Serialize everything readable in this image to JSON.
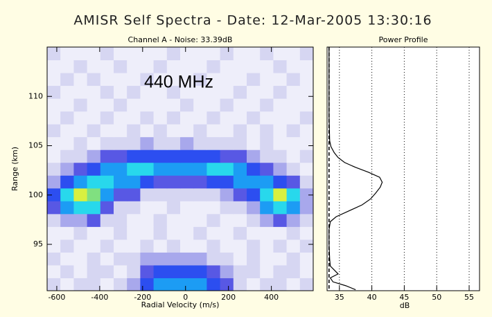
{
  "title": "AMISR Self Spectra - Date: 12-Mar-2005 13:30:16",
  "chart_data": [
    {
      "type": "heatmap",
      "title": "Channel A - Noise: 33.39dB",
      "annotation": "440 MHz",
      "xlabel": "Radial Velocity (m/s)",
      "ylabel": "Range (km)",
      "xlim": [
        -645,
        595
      ],
      "ylim": [
        90.3,
        115
      ],
      "xticks": [
        -600,
        -400,
        -200,
        0,
        200,
        400
      ],
      "yticks": [
        95,
        100,
        105,
        110
      ],
      "xbins": [
        -645,
        -583,
        -521,
        -459,
        -397,
        -335,
        -273,
        -211,
        -149,
        -87,
        -25,
        37,
        99,
        161,
        223,
        285,
        347,
        409,
        471,
        533,
        595
      ],
      "ybins": [
        90.3,
        91.6,
        92.9,
        94.2,
        95.5,
        96.8,
        98.1,
        99.4,
        100.7,
        102.0,
        103.3,
        104.6,
        105.9,
        107.2,
        108.5,
        109.8,
        111.1,
        112.4,
        113.7,
        115.0
      ],
      "zlim": [
        0,
        10
      ],
      "colorscale": [
        "#ffffff",
        "#eeeefa",
        "#d6d6f2",
        "#a8a8ec",
        "#5858e4",
        "#2c4ef0",
        "#1c9cf4",
        "#28d8ec",
        "#80e080",
        "#d8f040",
        "#f8f838"
      ],
      "z": [
        [
          2,
          1,
          2,
          2,
          1,
          2,
          3,
          5,
          6,
          6,
          6,
          6,
          5,
          4,
          2,
          1,
          2,
          2,
          1,
          2
        ],
        [
          1,
          2,
          1,
          2,
          2,
          1,
          2,
          4,
          5,
          5,
          5,
          5,
          4,
          3,
          2,
          2,
          1,
          2,
          2,
          1
        ],
        [
          2,
          1,
          1,
          2,
          1,
          2,
          2,
          3,
          3,
          3,
          3,
          3,
          2,
          2,
          1,
          2,
          1,
          1,
          2,
          1
        ],
        [
          1,
          2,
          1,
          1,
          2,
          1,
          1,
          2,
          1,
          2,
          1,
          1,
          2,
          1,
          1,
          2,
          1,
          2,
          1,
          2
        ],
        [
          1,
          1,
          2,
          1,
          1,
          2,
          1,
          1,
          2,
          1,
          1,
          2,
          1,
          1,
          2,
          1,
          1,
          1,
          2,
          1
        ],
        [
          2,
          3,
          3,
          4,
          2,
          2,
          1,
          1,
          2,
          1,
          1,
          1,
          2,
          1,
          1,
          2,
          3,
          4,
          3,
          2
        ],
        [
          4,
          6,
          7,
          7,
          4,
          2,
          2,
          1,
          1,
          2,
          1,
          1,
          1,
          2,
          2,
          3,
          6,
          7,
          6,
          3
        ],
        [
          5,
          7,
          9,
          8,
          6,
          4,
          4,
          2,
          2,
          2,
          2,
          2,
          2,
          3,
          4,
          5,
          7,
          9,
          7,
          3
        ],
        [
          3,
          5,
          6,
          7,
          7,
          6,
          6,
          5,
          4,
          4,
          4,
          4,
          5,
          5,
          6,
          6,
          6,
          5,
          4,
          2
        ],
        [
          2,
          3,
          4,
          5,
          6,
          6,
          7,
          7,
          6,
          6,
          6,
          6,
          7,
          7,
          6,
          5,
          4,
          3,
          2,
          1
        ],
        [
          1,
          2,
          2,
          3,
          4,
          4,
          5,
          5,
          5,
          5,
          5,
          5,
          5,
          4,
          4,
          3,
          2,
          2,
          1,
          2
        ],
        [
          1,
          1,
          2,
          1,
          2,
          2,
          2,
          3,
          2,
          2,
          3,
          2,
          2,
          2,
          2,
          1,
          2,
          1,
          1,
          1
        ],
        [
          2,
          1,
          1,
          2,
          1,
          1,
          2,
          1,
          2,
          1,
          1,
          2,
          1,
          1,
          2,
          1,
          2,
          1,
          2,
          1
        ],
        [
          1,
          2,
          1,
          1,
          2,
          1,
          1,
          2,
          1,
          2,
          1,
          1,
          2,
          1,
          1,
          2,
          1,
          1,
          1,
          2
        ],
        [
          1,
          1,
          2,
          1,
          1,
          2,
          1,
          1,
          1,
          1,
          2,
          1,
          1,
          2,
          1,
          1,
          2,
          1,
          1,
          1
        ],
        [
          2,
          1,
          1,
          1,
          2,
          1,
          2,
          1,
          1,
          2,
          1,
          1,
          1,
          1,
          2,
          1,
          1,
          2,
          1,
          1
        ],
        [
          1,
          2,
          1,
          2,
          1,
          1,
          1,
          2,
          1,
          1,
          1,
          2,
          1,
          1,
          1,
          2,
          1,
          1,
          2,
          1
        ],
        [
          1,
          1,
          2,
          1,
          1,
          2,
          1,
          1,
          2,
          1,
          1,
          1,
          2,
          1,
          1,
          1,
          1,
          2,
          1,
          1
        ],
        [
          2,
          1,
          1,
          1,
          2,
          1,
          1,
          1,
          1,
          2,
          1,
          1,
          1,
          2,
          1,
          1,
          2,
          1,
          1,
          2
        ]
      ]
    },
    {
      "type": "line",
      "title": "Power Profile",
      "xlabel": "dB",
      "xlim": [
        33.1,
        56.6
      ],
      "xticks": [
        35,
        40,
        45,
        50,
        55
      ],
      "ylim": [
        90.3,
        115
      ],
      "grid": true,
      "color": "#000000",
      "noise_level": 33.4,
      "y": [
        90.4,
        90.8,
        91.2,
        91.6,
        92.0,
        92.4,
        92.8,
        93.5,
        95,
        96.5,
        97.3,
        97.8,
        98.4,
        99,
        99.6,
        100.2,
        100.8,
        101.3,
        101.8,
        102.3,
        102.8,
        103.3,
        103.8,
        104.3,
        104.9,
        105.5,
        108,
        112,
        115
      ],
      "values": [
        37.5,
        36,
        34,
        33.6,
        34.8,
        34.2,
        33.6,
        33.5,
        33.4,
        33.4,
        33.6,
        34.5,
        36.5,
        38.5,
        39.8,
        40.6,
        41.3,
        41.6,
        41.2,
        39.5,
        37.5,
        35.8,
        34.8,
        34.2,
        33.7,
        33.5,
        33.4,
        33.4,
        33.4
      ]
    }
  ]
}
